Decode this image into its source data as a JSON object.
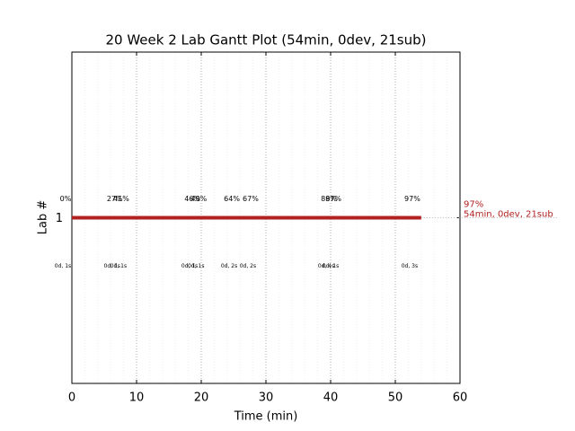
{
  "chart_data": {
    "type": "gantt",
    "title": "20 Week 2 Lab Gantt Plot (54min, 0dev, 21sub)",
    "x_label": "Time (min)",
    "y_label": "Lab #",
    "xlim": [
      0,
      60
    ],
    "xticks": [
      0,
      10,
      20,
      30,
      40,
      50,
      60
    ],
    "ylim": [
      0,
      2
    ],
    "yticks": [
      1
    ],
    "grid": true,
    "bars": [
      {
        "lab": 1,
        "start": 0,
        "end": 54,
        "color": "#b22222",
        "end_label": "97%",
        "summary": "54min, 0dev, 21sub"
      }
    ],
    "events": [
      {
        "x": 0,
        "label": "0%",
        "sublabel": "0d, 1s"
      },
      {
        "x": 7.6,
        "label": "27%",
        "sublabel": "0d, 1s"
      },
      {
        "x": 8.6,
        "label": "41%",
        "sublabel": "0d, 1s"
      },
      {
        "x": 19.6,
        "label": "46%",
        "sublabel": "0d, 1s"
      },
      {
        "x": 20.6,
        "label": "49%",
        "sublabel": "0d, 1s"
      },
      {
        "x": 25.7,
        "label": "64%",
        "sublabel": "0d, 2s"
      },
      {
        "x": 28.6,
        "label": "67%",
        "sublabel": "0d, 2s"
      },
      {
        "x": 40.7,
        "label": "88%",
        "sublabel": "0d, 4s"
      },
      {
        "x": 41.4,
        "label": "97%",
        "sublabel": "0d, 1s"
      },
      {
        "x": 53.6,
        "label": "97%",
        "sublabel": "0d, 3s"
      }
    ]
  }
}
